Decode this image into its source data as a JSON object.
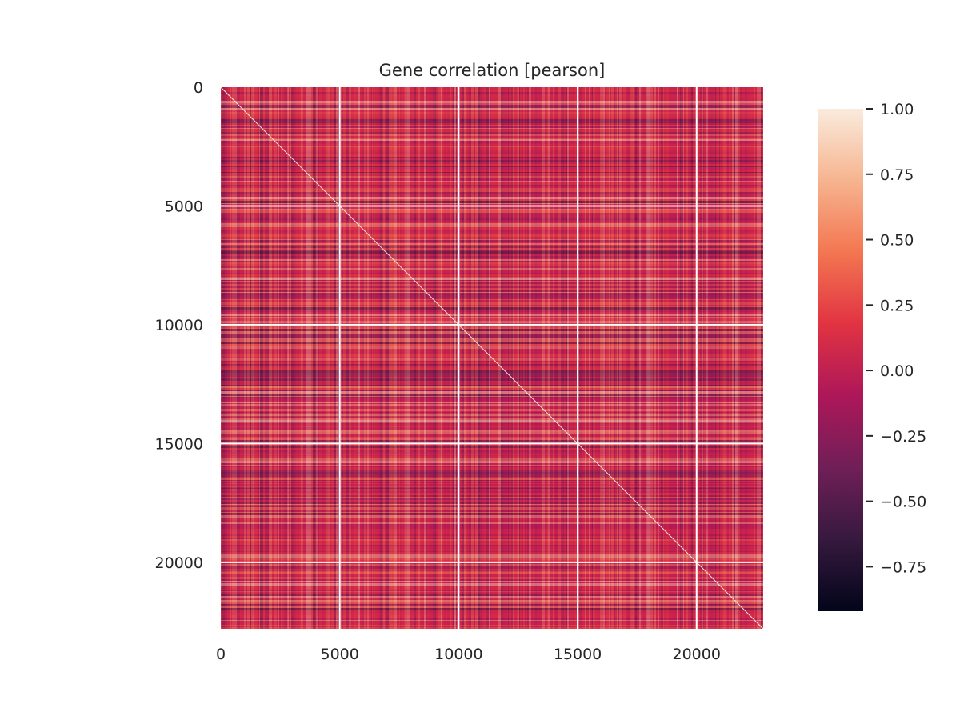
{
  "chart_data": {
    "type": "heatmap",
    "title": "Gene correlation [pearson]",
    "xlabel": "",
    "ylabel": "",
    "matrix_size": 22800,
    "xlim": [
      0,
      22800
    ],
    "ylim": [
      22800,
      0
    ],
    "x_ticks": [
      0,
      5000,
      10000,
      15000,
      20000
    ],
    "x_tick_labels": [
      "0",
      "5000",
      "10000",
      "15000",
      "20000"
    ],
    "y_ticks": [
      0,
      5000,
      10000,
      15000,
      20000
    ],
    "y_tick_labels": [
      "0",
      "5000",
      "10000",
      "15000",
      "20000"
    ],
    "grid": true,
    "diagonal_value": 1.0,
    "colorbar": {
      "range": [
        -0.92,
        1.0
      ],
      "ticks": [
        1.0,
        0.75,
        0.5,
        0.25,
        0.0,
        -0.25,
        -0.5,
        -0.75
      ],
      "tick_labels": [
        "1.00",
        "0.75",
        "0.50",
        "0.25",
        "0.00",
        "−0.25",
        "−0.50",
        "−0.75"
      ],
      "colormap": "rocket",
      "colormap_stops": [
        "#03051a",
        "#36193e",
        "#701f57",
        "#ad1759",
        "#e13342",
        "#f37651",
        "#f6b48f",
        "#faebdd"
      ]
    },
    "colors": {
      "grid": "#ffffff",
      "text": "#262626"
    }
  }
}
